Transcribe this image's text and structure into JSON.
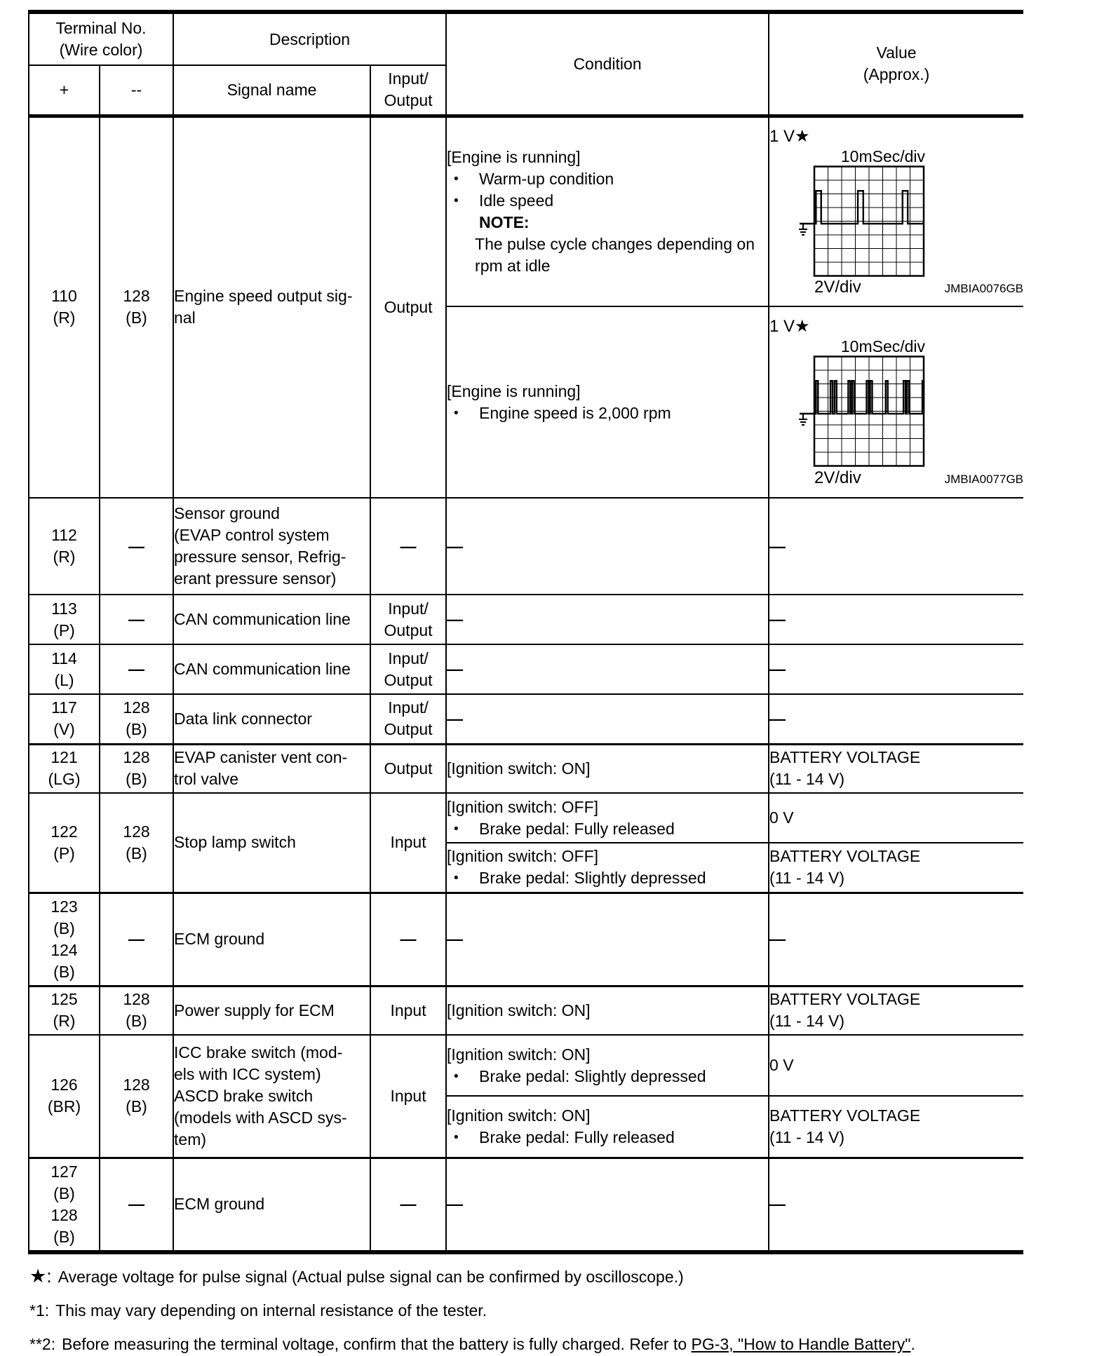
{
  "ui": {
    "bullet": "•"
  },
  "header": {
    "terminal": "Terminal No.\n(Wire color)",
    "plus": "+",
    "minus": "--",
    "description": "Description",
    "signal": "Signal name",
    "io": "Input/\nOutput",
    "condition": "Condition",
    "value": "Value\n(Approx.)"
  },
  "rows": [
    {
      "plus": "110\n(R)",
      "minus": "128\n(B)",
      "signal": "Engine speed output sig-\nnal",
      "io": "Output",
      "subs": [
        {
          "cond": {
            "head": "[Engine is running]",
            "bullets": [
              "Warm-up condition",
              "Idle speed"
            ],
            "note_label": "NOTE:",
            "note_body": "The pulse cycle changes depending on\nrpm at idle"
          },
          "val": {
            "label": "1 V★",
            "scope": {
              "type": "line",
              "x_scale": "10mSec/div",
              "y_scale": "2V/div",
              "fig": "JMBIA0076GB",
              "divs": 8,
              "baseline_div": 4.18,
              "top_div": 1.78,
              "pulses": [
                [
                  0.12,
                  0.38
                ],
                [
                  3.18,
                  0.4
                ],
                [
                  6.45,
                  0.38
                ]
              ]
            }
          }
        },
        {
          "cond": {
            "head": "[Engine is running]",
            "bullets": [
              "Engine speed is 2,000 rpm"
            ]
          },
          "val": {
            "label": "1 V★",
            "scope": {
              "type": "line",
              "x_scale": "10mSec/div",
              "y_scale": "2V/div",
              "fig": "JMBIA0077GB",
              "divs": 8,
              "baseline_div": 4.18,
              "top_div": 1.78,
              "pulses": [
                [
                  0.12,
                  0.15
                ],
                [
                  1.18,
                  0.15
                ],
                [
                  1.48,
                  0.15
                ],
                [
                  2.48,
                  0.15
                ],
                [
                  2.76,
                  0.15
                ],
                [
                  3.82,
                  0.15
                ],
                [
                  4.08,
                  0.15
                ],
                [
                  5.22,
                  0.15
                ],
                [
                  6.52,
                  0.15
                ],
                [
                  6.78,
                  0.15
                ],
                [
                  7.9,
                  0.1
                ]
              ]
            }
          }
        }
      ]
    },
    {
      "plus": "112\n(R)",
      "minus": "—",
      "signal": "Sensor ground\n(EVAP control system\npressure sensor, Refrig-\nerant pressure sensor)",
      "io": "—",
      "subs": [
        {
          "cond": {
            "dash": "—"
          },
          "val": {
            "dash": "—"
          }
        }
      ]
    },
    {
      "plus": "113\n(P)",
      "minus": "—",
      "signal": "CAN communication line",
      "io": "Input/\nOutput",
      "subs": [
        {
          "cond": {
            "dash": "—"
          },
          "val": {
            "dash": "—"
          }
        }
      ]
    },
    {
      "plus": "114\n(L)",
      "minus": "—",
      "signal": "CAN communication line",
      "io": "Input/\nOutput",
      "subs": [
        {
          "cond": {
            "dash": "—"
          },
          "val": {
            "dash": "—"
          }
        }
      ]
    },
    {
      "plus": "117\n(V)",
      "minus": "128\n(B)",
      "signal": "Data link connector",
      "io": "Input/\nOutput",
      "subs": [
        {
          "cond": {
            "dash": "—"
          },
          "val": {
            "dash": "—"
          }
        }
      ]
    },
    {
      "plus": "121\n(LG)",
      "minus": "128\n(B)",
      "signal": "EVAP canister vent con-\ntrol valve",
      "io": "Output",
      "subs": [
        {
          "cond": {
            "head": "[Ignition switch: ON]"
          },
          "val": {
            "text": "BATTERY VOLTAGE\n(11 - 14 V)"
          }
        }
      ]
    },
    {
      "plus": "122\n(P)",
      "minus": "128\n(B)",
      "signal": "Stop lamp switch",
      "io": "Input",
      "subs": [
        {
          "cond": {
            "head": "[Ignition switch: OFF]",
            "bullets": [
              "Brake pedal: Fully released"
            ]
          },
          "val": {
            "text": "0 V"
          }
        },
        {
          "cond": {
            "head": "[Ignition switch: OFF]",
            "bullets": [
              "Brake pedal: Slightly depressed"
            ]
          },
          "val": {
            "text": "BATTERY VOLTAGE\n(11 - 14 V)"
          }
        }
      ]
    },
    {
      "plus": "123\n(B)\n124\n(B)",
      "minus": "—",
      "signal": "ECM ground",
      "io": "—",
      "subs": [
        {
          "cond": {
            "dash": "—"
          },
          "val": {
            "dash": "—"
          }
        }
      ]
    },
    {
      "plus": "125\n(R)",
      "minus": "128\n(B)",
      "signal": "Power supply for ECM",
      "io": "Input",
      "subs": [
        {
          "cond": {
            "head": "[Ignition switch: ON]"
          },
          "val": {
            "text": "BATTERY VOLTAGE\n(11 - 14 V)"
          }
        }
      ]
    },
    {
      "plus": "126\n(BR)",
      "minus": "128\n(B)",
      "signal": "ICC brake switch (mod-\nels with ICC system)\nASCD brake switch\n(models with ASCD sys-\ntem)",
      "io": "Input",
      "subs": [
        {
          "cond": {
            "head": "[Ignition switch: ON]",
            "bullets": [
              "Brake pedal: Slightly depressed"
            ]
          },
          "val": {
            "text": "0 V"
          }
        },
        {
          "cond": {
            "head": "[Ignition switch: ON]",
            "bullets": [
              "Brake pedal: Fully released"
            ]
          },
          "val": {
            "text": "BATTERY VOLTAGE\n(11 - 14 V)"
          }
        }
      ]
    },
    {
      "plus": "127\n(B)\n128\n(B)",
      "minus": "—",
      "signal": "ECM ground",
      "io": "—",
      "subs": [
        {
          "cond": {
            "dash": "—"
          },
          "val": {
            "dash": "—"
          }
        }
      ]
    }
  ],
  "footnotes": [
    {
      "marker": "★:",
      "text": "Average voltage for pulse signal (Actual pulse signal can be confirmed by oscilloscope.)"
    },
    {
      "marker": "*1:",
      "text": "This may vary depending on internal resistance of the tester."
    },
    {
      "marker": "**2:",
      "text": "Before measuring the terminal voltage, confirm that the battery is fully charged. Refer to ",
      "link": "PG-3, \"How to Handle Battery\"",
      "after": "."
    }
  ]
}
